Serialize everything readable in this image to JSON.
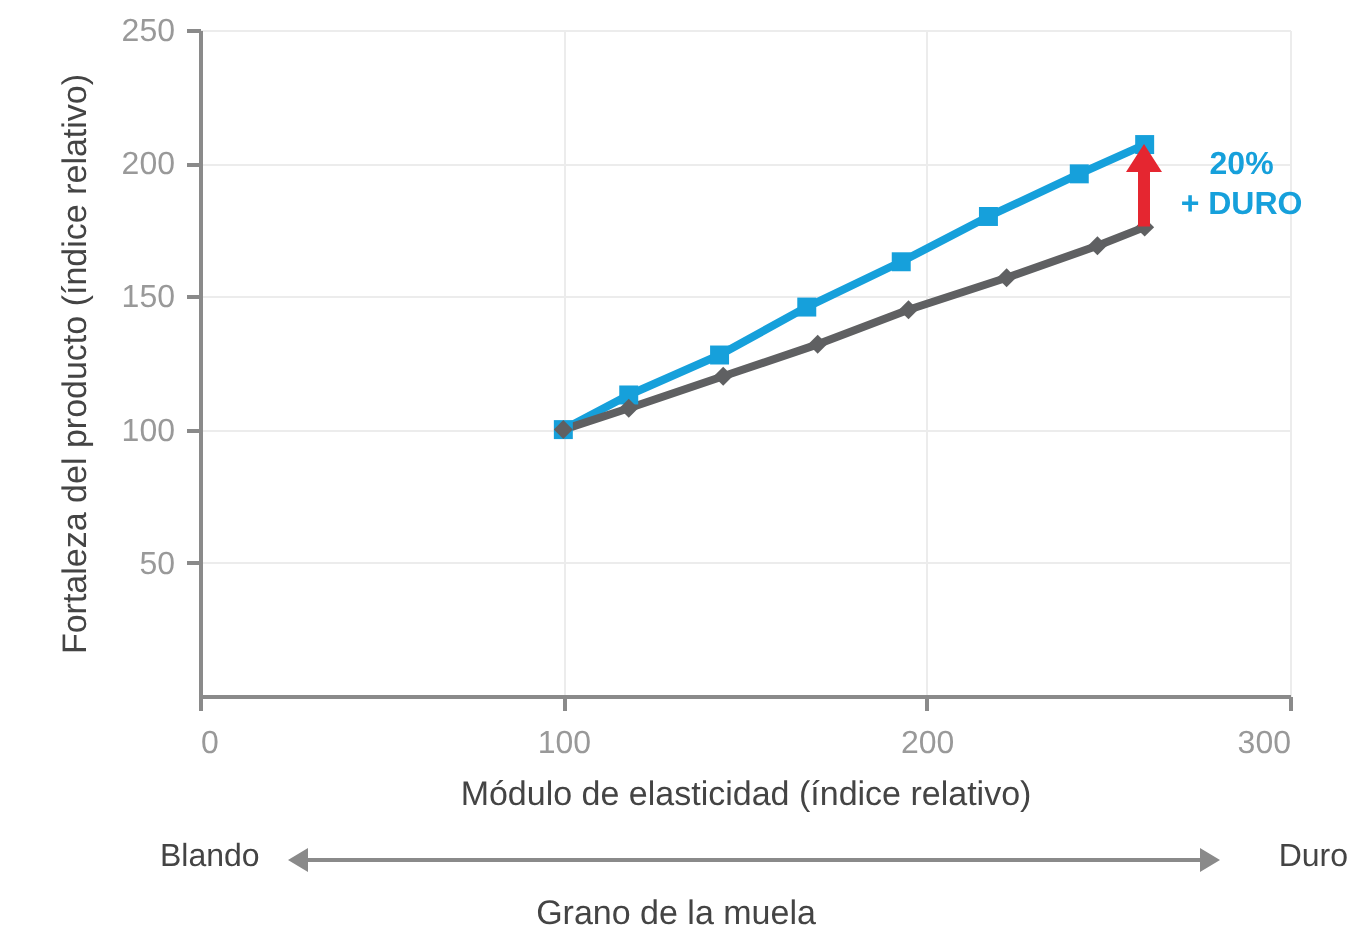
{
  "chart_data": {
    "type": "line",
    "xlabel": "Módulo de elasticidad (índice relativo)",
    "ylabel": "Fortaleza del producto (índice relativo)",
    "xlim": [
      0,
      300
    ],
    "xticks": [
      0,
      100,
      200,
      300
    ],
    "ylim": [
      0,
      250
    ],
    "yticks": [
      50,
      100,
      150,
      200,
      250
    ],
    "grid": true,
    "series": [
      {
        "color": "#16a0db",
        "marker": "square",
        "x": [
          100,
          118,
          143,
          167,
          193,
          217,
          242,
          260
        ],
        "values": [
          100,
          113,
          128,
          146,
          163,
          180,
          196,
          207
        ]
      },
      {
        "color": "#5f6062",
        "marker": "diamond",
        "x": [
          100,
          118,
          144,
          170,
          195,
          222,
          247,
          260
        ],
        "values": [
          100,
          108,
          120,
          132,
          145,
          157,
          169,
          176
        ]
      }
    ],
    "annotations": [
      "20%\n+ DURO",
      "Blando",
      "Duro",
      "Grano de la muela"
    ]
  }
}
